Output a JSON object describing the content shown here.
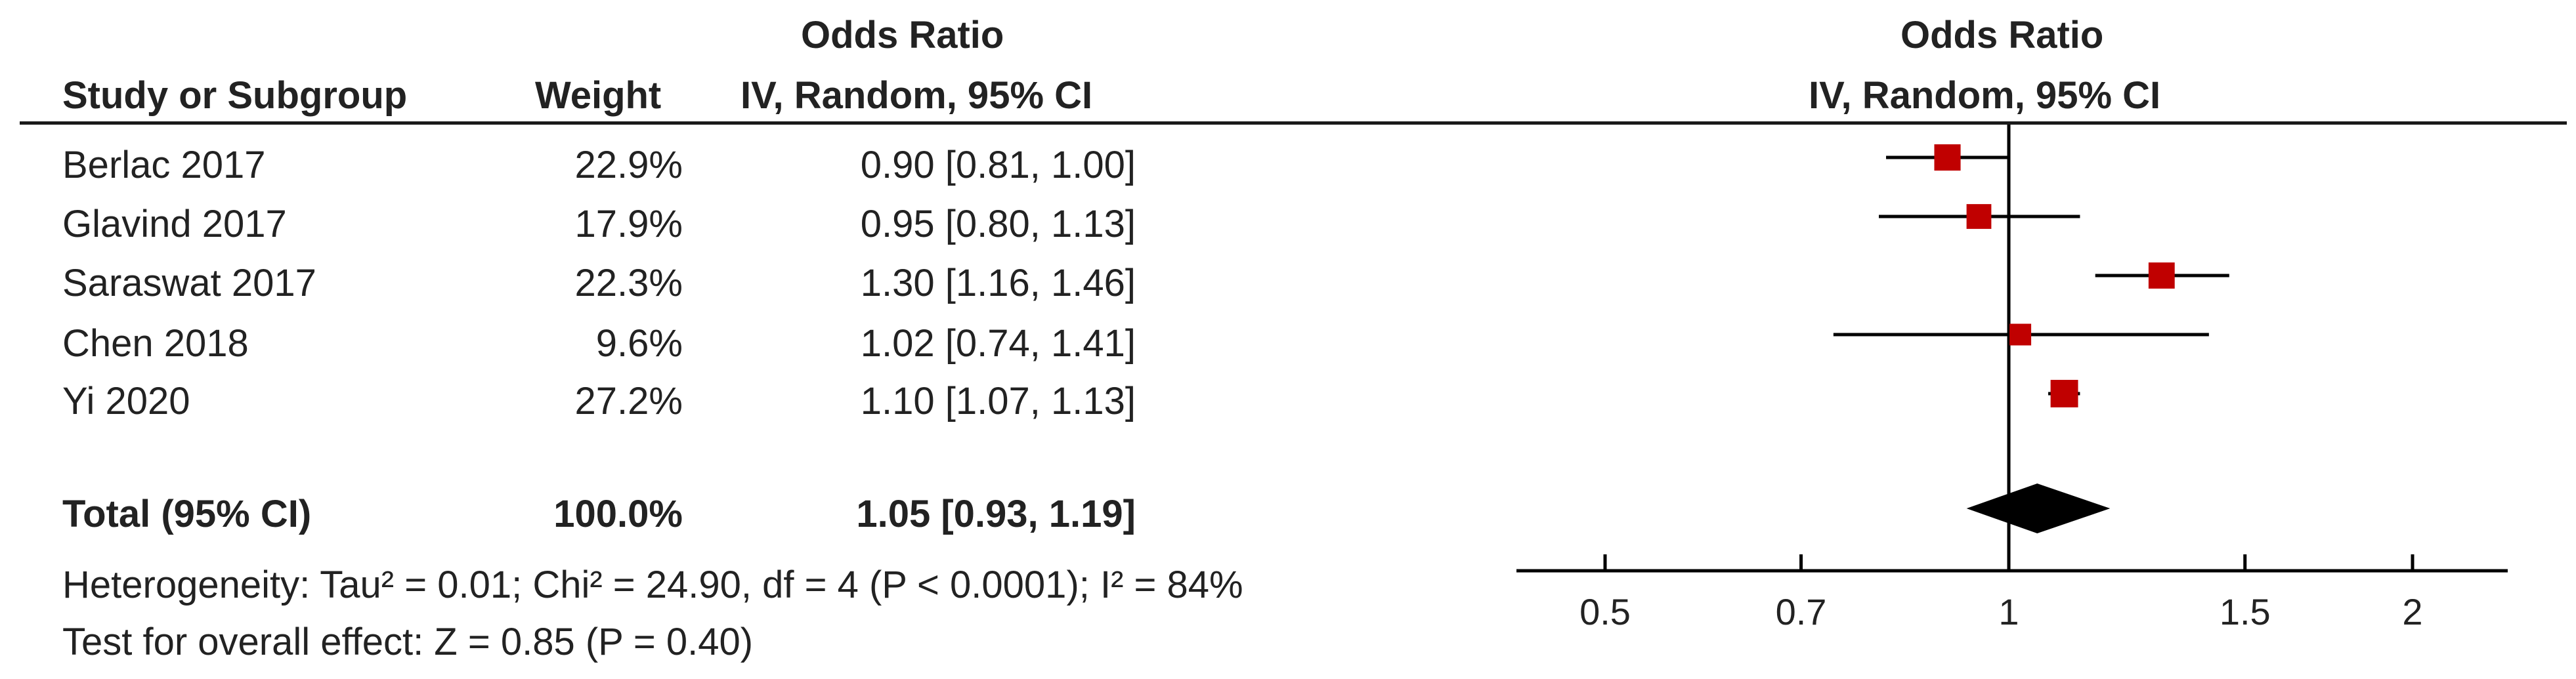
{
  "table": {
    "header_top": "Odds Ratio",
    "col_study": "Study or Subgroup",
    "col_weight": "Weight",
    "col_ci": "IV, Random, 95% CI"
  },
  "studies": [
    {
      "name": "Berlac 2017",
      "weight": "22.9%",
      "ci_text": "0.90 [0.81, 1.00]"
    },
    {
      "name": "Glavind 2017",
      "weight": "17.9%",
      "ci_text": "0.95 [0.80, 1.13]"
    },
    {
      "name": "Saraswat 2017",
      "weight": "22.3%",
      "ci_text": "1.30 [1.16, 1.46]"
    },
    {
      "name": "Chen 2018",
      "weight": "9.6%",
      "ci_text": "1.02 [0.74, 1.41]"
    },
    {
      "name": "Yi 2020",
      "weight": "27.2%",
      "ci_text": "1.10 [1.07, 1.13]"
    }
  ],
  "total": {
    "label": "Total (95% CI)",
    "weight": "100.0%",
    "ci_text": "1.05 [0.93, 1.19]"
  },
  "heterogeneity": "Heterogeneity: Tau² = 0.01; Chi² = 24.90, df = 4 (P < 0.0001); I² = 84%",
  "overall_effect": "Test for overall effect: Z = 0.85 (P = 0.40)",
  "plot": {
    "header_top": "Odds Ratio",
    "header_sub": "IV, Random, 95% CI"
  },
  "colors": {
    "marker": "#c00000",
    "line": "#000000",
    "diamond": "#000000"
  },
  "chart_data": {
    "type": "forest",
    "x_scale": "log",
    "xlim": [
      0.4,
      2.5
    ],
    "ticks": [
      0.5,
      0.7,
      1,
      1.5,
      2
    ],
    "tick_labels": [
      "0.5",
      "0.7",
      "1",
      "1.5",
      "2"
    ],
    "reference_line": 1,
    "studies": [
      {
        "name": "Berlac 2017",
        "or": 0.9,
        "lo": 0.81,
        "hi": 1.0,
        "weight": 22.9
      },
      {
        "name": "Glavind 2017",
        "or": 0.95,
        "lo": 0.8,
        "hi": 1.13,
        "weight": 17.9
      },
      {
        "name": "Saraswat 2017",
        "or": 1.3,
        "lo": 1.16,
        "hi": 1.46,
        "weight": 22.3
      },
      {
        "name": "Chen 2018",
        "or": 1.02,
        "lo": 0.74,
        "hi": 1.41,
        "weight": 9.6
      },
      {
        "name": "Yi 2020",
        "or": 1.1,
        "lo": 1.07,
        "hi": 1.13,
        "weight": 27.2
      }
    ],
    "total": {
      "or": 1.05,
      "lo": 0.93,
      "hi": 1.19
    }
  }
}
